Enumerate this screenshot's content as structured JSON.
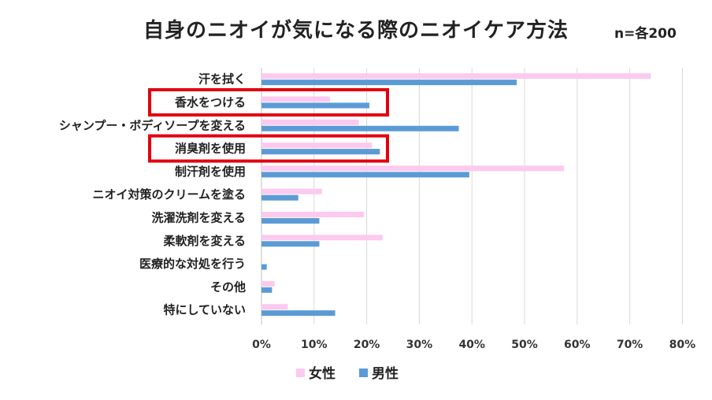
{
  "header": {
    "title": "自身のニオイが気になる際のニオイケア方法",
    "sample_note": "n=各200"
  },
  "chart_data": {
    "type": "bar",
    "orientation": "horizontal",
    "title": "自身のニオイが気になる際のニオイケア方法",
    "categories": [
      "汗を拭く",
      "香水をつける",
      "シャンプー・ボディソープを変える",
      "消臭剤を使用",
      "制汗剤を使用",
      "ニオイ対策のクリームを塗る",
      "洗濯洗剤を変える",
      "柔軟剤を変える",
      "医療的な対処を行う",
      "その他",
      "特にしていない"
    ],
    "series": [
      {
        "name": "女性",
        "color": "#fccaee",
        "values": [
          74,
          13,
          18.5,
          21,
          57.5,
          11.5,
          19.5,
          23,
          0,
          2.5,
          5
        ]
      },
      {
        "name": "男性",
        "color": "#5b9bd5",
        "values": [
          48.5,
          20.5,
          37.5,
          22.5,
          39.5,
          7,
          11,
          11,
          1,
          2,
          14
        ]
      }
    ],
    "x_ticks": [
      "0%",
      "10%",
      "20%",
      "30%",
      "40%",
      "50%",
      "60%",
      "70%",
      "80%"
    ],
    "xlim": [
      0,
      80
    ],
    "unit": "%",
    "grid": "vertical",
    "legend_position": "bottom",
    "highlighted_categories": [
      "香水をつける",
      "消臭剤を使用"
    ],
    "highlight_color": "#e3000f"
  }
}
